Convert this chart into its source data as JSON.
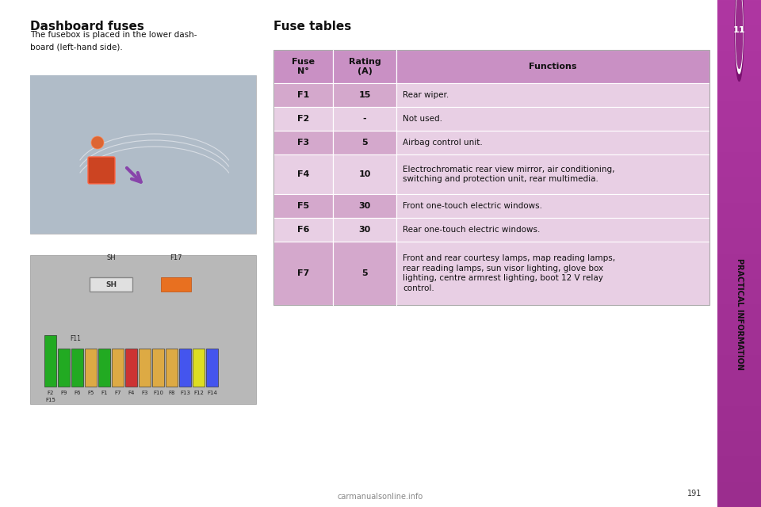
{
  "page_bg": "#ffffff",
  "sidebar_purple": "#9b2d8e",
  "sidebar_text": "PRACTICAL INFORMATION",
  "chapter_number": "11",
  "left_title": "Dashboard fuses",
  "left_subtitle": "The fusebox is placed in the lower dash-\nboard (left-hand side).",
  "table_title": "Fuse tables",
  "header_bg": "#c990c4",
  "row_bg_dark": "#d4a8cc",
  "row_bg_light": "#e8cfe4",
  "col1_header": "Fuse\nN°",
  "col2_header": "Rating\n(A)",
  "col3_header": "Functions",
  "rows": [
    {
      "fuse": "F1",
      "rating": "15",
      "function": "Rear wiper."
    },
    {
      "fuse": "F2",
      "rating": "-",
      "function": "Not used."
    },
    {
      "fuse": "F3",
      "rating": "5",
      "function": "Airbag control unit."
    },
    {
      "fuse": "F4",
      "rating": "10",
      "function": "Electrochromatic rear view mirror, air conditioning,\nswitching and protection unit, rear multimedia."
    },
    {
      "fuse": "F5",
      "rating": "30",
      "function": "Front one-touch electric windows."
    },
    {
      "fuse": "F6",
      "rating": "30",
      "function": "Rear one-touch electric windows."
    },
    {
      "fuse": "F7",
      "rating": "5",
      "function": "Front and rear courtesy lamps, map reading lamps,\nrear reading lamps, sun visor lighting, glove box\nlighting, centre armrest lighting, boot 12 V relay\ncontrol."
    }
  ],
  "fuse_diagram": {
    "bg_color": "#b8b8b8",
    "sh_color": "#e0e0e0",
    "sh_border": "#888888",
    "f17_color": "#e87020",
    "f17_border": "#c05010",
    "fuses_bottom": [
      {
        "label": "F2",
        "color": "#22aa22",
        "tall": true
      },
      {
        "label": "F9",
        "color": "#22aa22",
        "tall": false
      },
      {
        "label": "F6",
        "color": "#22aa22",
        "tall": false
      },
      {
        "label": "F5",
        "color": "#ddaa44",
        "tall": false
      },
      {
        "label": "F1",
        "color": "#22aa22",
        "tall": false
      },
      {
        "label": "F7",
        "color": "#ddaa44",
        "tall": false
      },
      {
        "label": "F4",
        "color": "#cc3333",
        "tall": false
      },
      {
        "label": "F3",
        "color": "#ddaa44",
        "tall": false
      },
      {
        "label": "F10",
        "color": "#ddaa44",
        "tall": false
      },
      {
        "label": "F8",
        "color": "#ddaa44",
        "tall": false
      },
      {
        "label": "F13",
        "color": "#4455ee",
        "tall": false
      },
      {
        "label": "F12",
        "color": "#dddd22",
        "tall": false
      },
      {
        "label": "F14",
        "color": "#4455ee",
        "tall": false
      }
    ],
    "f11_label": "F11",
    "f15_label": "F15"
  }
}
